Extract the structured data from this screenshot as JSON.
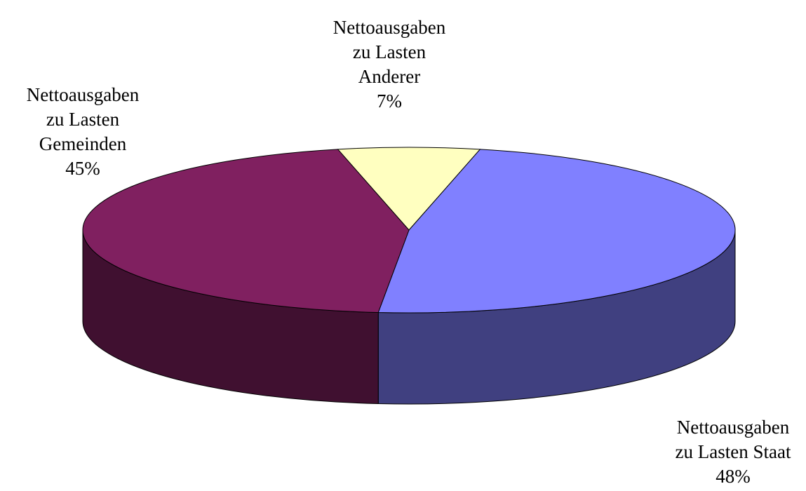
{
  "chart_data": {
    "type": "pie3d",
    "categories": [
      "Nettoausgaben\nzu Lasten\nAnderer",
      "Nettoausgaben\nzu Lasten Staat",
      "Nettoausgaben\nzu Lasten\nGemeinden"
    ],
    "values": [
      7,
      48,
      45
    ],
    "value_labels": [
      "7%",
      "48%",
      "45%"
    ],
    "colors": [
      "#ffffc0",
      "#8080ff",
      "#802060"
    ],
    "side_colors": [
      "#a0a070",
      "#404080",
      "#401030"
    ]
  }
}
